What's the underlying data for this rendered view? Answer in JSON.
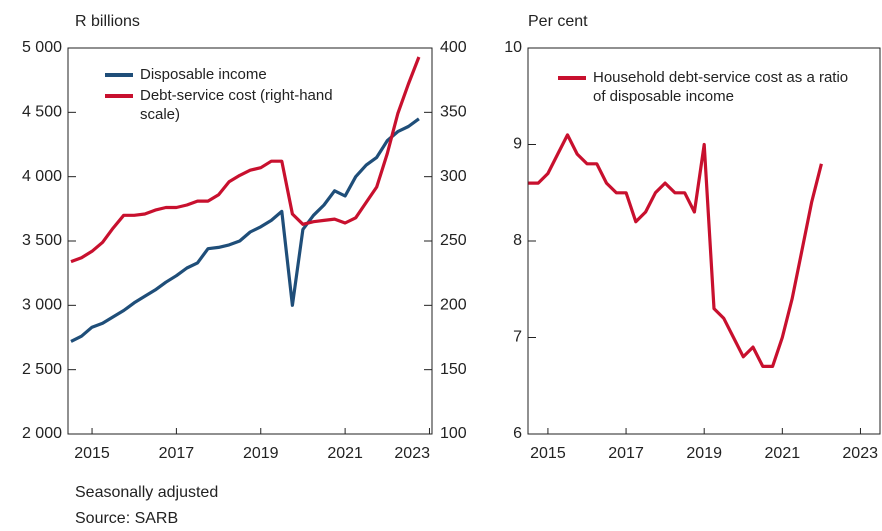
{
  "chart_data": [
    {
      "type": "line",
      "ylabel": "R billions",
      "x": [
        2014.5,
        2014.75,
        2015,
        2015.25,
        2015.5,
        2015.75,
        2016,
        2016.25,
        2016.5,
        2016.75,
        2017,
        2017.25,
        2017.5,
        2017.75,
        2018,
        2018.25,
        2018.5,
        2018.75,
        2019,
        2019.25,
        2019.5,
        2019.75,
        2020,
        2020.25,
        2020.5,
        2020.75,
        2021,
        2021.25,
        2021.5,
        2021.75,
        2022,
        2022.25,
        2022.5,
        2022.75
      ],
      "series": [
        {
          "name": "Disposable income",
          "color": "#1f4e79",
          "values": [
            2720,
            2760,
            2830,
            2860,
            2910,
            2960,
            3020,
            3070,
            3120,
            3180,
            3230,
            3290,
            3330,
            3440,
            3450,
            3470,
            3500,
            3570,
            3610,
            3660,
            3730,
            3000,
            3590,
            3700,
            3780,
            3890,
            3850,
            4000,
            4090,
            4150,
            4280,
            4350,
            4390,
            4450
          ]
        },
        {
          "name": "Debt-service cost (right-hand scale)",
          "color": "#c8102e",
          "axis": "y2",
          "values": [
            234,
            237,
            242,
            249,
            260,
            270,
            270,
            271,
            274,
            276,
            276,
            278,
            281,
            281,
            286,
            296,
            301,
            305,
            307,
            312,
            312,
            271,
            263,
            265,
            266,
            267,
            264,
            268,
            280,
            292,
            318,
            349,
            372,
            393
          ]
        }
      ],
      "xlim": [
        2014.43,
        2023.06
      ],
      "xticks": [
        2015,
        2017,
        2019,
        2021,
        2023
      ],
      "ylim": [
        2000,
        5000
      ],
      "yticks": [
        {
          "value": 2000,
          "label": "2 000"
        },
        {
          "value": 2500,
          "label": "2 500"
        },
        {
          "value": 3000,
          "label": "3 000"
        },
        {
          "value": 3500,
          "label": "3 500"
        },
        {
          "value": 4000,
          "label": "4 000"
        },
        {
          "value": 4500,
          "label": "4 500"
        },
        {
          "value": 5000,
          "label": "5 000"
        }
      ],
      "y2lim": [
        100,
        400
      ],
      "y2ticks": [
        100,
        150,
        200,
        250,
        300,
        350,
        400
      ]
    },
    {
      "type": "line",
      "ylabel": "Per cent",
      "x": [
        2014.5,
        2014.75,
        2015,
        2015.25,
        2015.5,
        2015.75,
        2016,
        2016.25,
        2016.5,
        2016.75,
        2017,
        2017.25,
        2017.5,
        2017.75,
        2018,
        2018.25,
        2018.5,
        2018.75,
        2019,
        2019.25,
        2019.5,
        2019.75,
        2020,
        2020.25,
        2020.5,
        2020.75,
        2021,
        2021.25,
        2021.5,
        2021.75,
        2022
      ],
      "series": [
        {
          "name": "Household debt-service cost as a ratio of disposable income",
          "color": "#c8102e",
          "values": [
            8.6,
            8.6,
            8.7,
            8.9,
            9.1,
            8.9,
            8.8,
            8.8,
            8.6,
            8.5,
            8.5,
            8.2,
            8.3,
            8.5,
            8.6,
            8.5,
            8.5,
            8.3,
            9.0,
            7.3,
            7.2,
            7.0,
            6.8,
            6.9,
            6.7,
            6.7,
            7.0,
            7.4,
            7.9,
            8.4,
            8.8
          ]
        }
      ],
      "xlim": [
        2014.49,
        2023.5
      ],
      "xticks": [
        2015,
        2017,
        2019,
        2021,
        2023
      ],
      "ylim": [
        6,
        10
      ],
      "yticks": [
        6,
        7,
        8,
        9,
        10
      ]
    }
  ],
  "notes": [
    "Seasonally adjusted",
    "Source: SARB"
  ]
}
